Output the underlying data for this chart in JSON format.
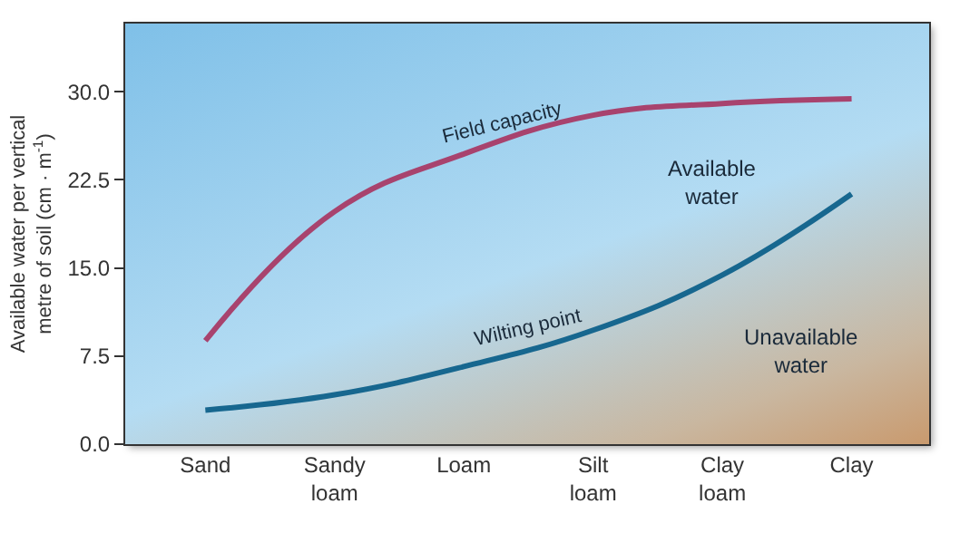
{
  "chart_data": {
    "type": "line",
    "ylabel": "Available water per vertical\nmetre of soil (cm · m$^{-1}$)",
    "categories": [
      "Sand",
      "Sandy\nloam",
      "Loam",
      "Silt\nloam",
      "Clay\nloam",
      "Clay"
    ],
    "series": [
      {
        "name": "Field capacity",
        "color": "#a8436e",
        "values": [
          8.8,
          19.8,
          24.7,
          28.0,
          29.0,
          29.4
        ]
      },
      {
        "name": "Wilting point",
        "color": "#17678f",
        "values": [
          2.9,
          4.2,
          6.6,
          9.7,
          14.4,
          21.3
        ]
      }
    ],
    "ylim": [
      0,
      35.8
    ],
    "yticks": [
      {
        "value": 0,
        "label": "0.0"
      },
      {
        "value": 7.5,
        "label": "7.5"
      },
      {
        "value": 15,
        "label": "15.0"
      },
      {
        "value": 22.5,
        "label": "22.5"
      },
      {
        "value": 30,
        "label": "30.0"
      }
    ],
    "annotations": [
      "Available\nwater",
      "Unavailable\nwater"
    ],
    "grid": false,
    "legend": false,
    "marker": "none",
    "line_style": "solid"
  }
}
